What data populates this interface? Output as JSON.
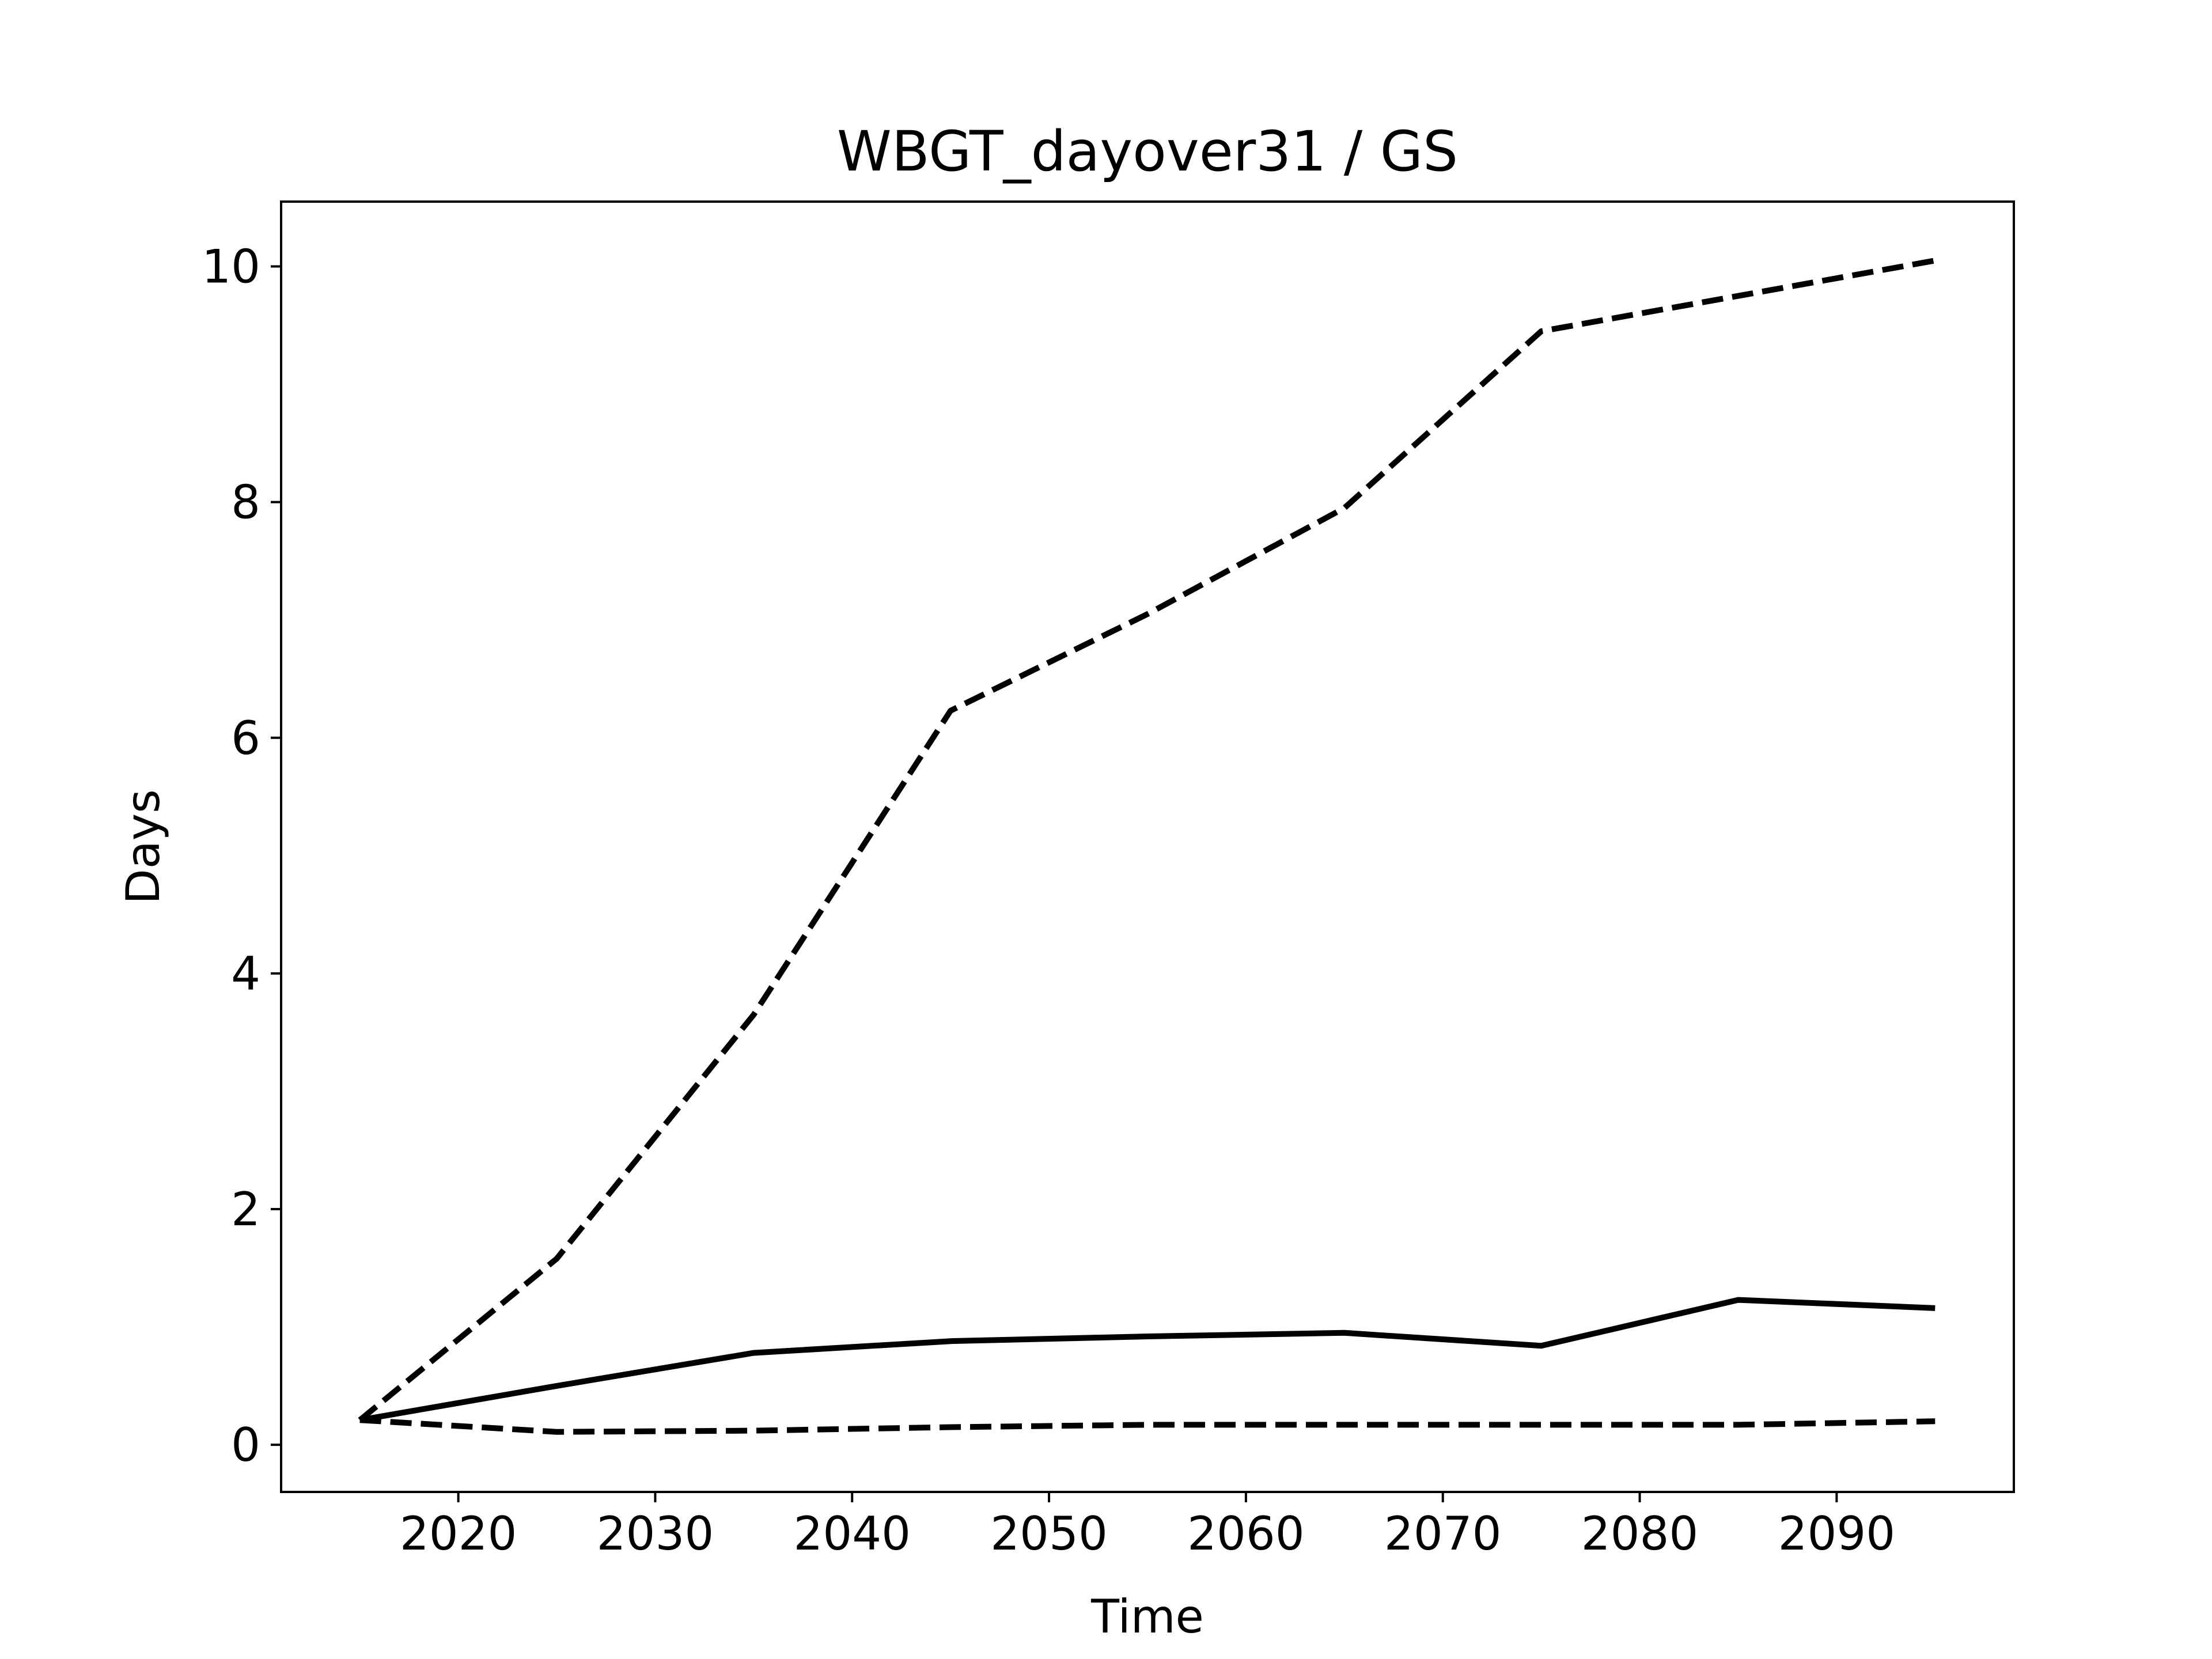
{
  "chart_data": {
    "type": "line",
    "title": "WBGT_dayover31 / GS",
    "xlabel": "Time",
    "ylabel": "Days",
    "xlim": [
      2011,
      2099
    ],
    "ylim": [
      -0.4,
      10.55
    ],
    "x": [
      2015,
      2025,
      2035,
      2045,
      2055,
      2065,
      2075,
      2085,
      2095
    ],
    "series": [
      {
        "style": "solid",
        "values": [
          0.21,
          0.5,
          0.78,
          0.88,
          0.92,
          0.95,
          0.84,
          1.23,
          1.16
        ]
      },
      {
        "style": "dashed",
        "values": [
          0.21,
          1.58,
          3.65,
          6.23,
          7.05,
          7.95,
          9.45,
          9.75,
          10.05
        ]
      },
      {
        "style": "dashed",
        "values": [
          0.21,
          0.11,
          0.12,
          0.15,
          0.17,
          0.17,
          0.17,
          0.17,
          0.2
        ]
      }
    ],
    "xticks": [
      2020,
      2030,
      2040,
      2050,
      2060,
      2070,
      2080,
      2090
    ],
    "yticks": [
      0,
      2,
      4,
      6,
      8,
      10
    ],
    "grid": false,
    "legend": false,
    "colors": {
      "line": "#000000",
      "axes": "#000000",
      "background": "#ffffff"
    }
  }
}
